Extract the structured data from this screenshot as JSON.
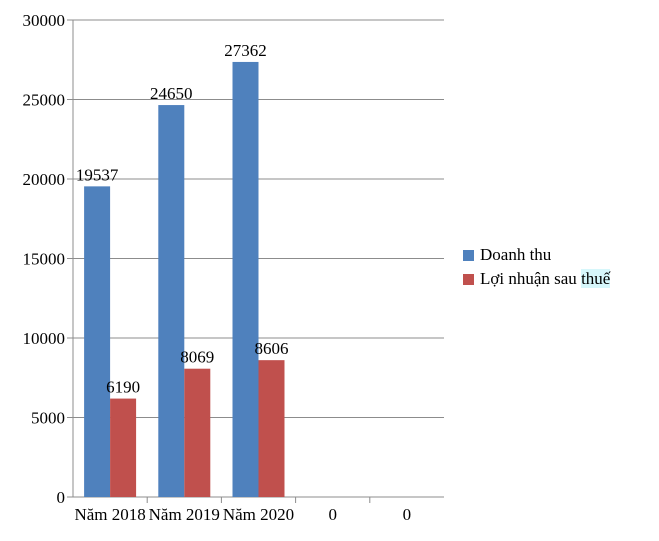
{
  "chart_data": {
    "type": "bar",
    "categories": [
      "Năm 2018",
      "Năm 2019",
      "Năm 2020",
      "0",
      "0"
    ],
    "series": [
      {
        "name": "Doanh thu",
        "values": [
          19537,
          24650,
          27362,
          null,
          null
        ],
        "color": "#4f81bd"
      },
      {
        "name": "Lợi nhuận sau thuế",
        "values": [
          6190,
          8069,
          8606,
          null,
          null
        ],
        "color": "#c0504d"
      }
    ],
    "data_labels": [
      [
        "19537",
        "24650",
        "27362"
      ],
      [
        "6190",
        "8069",
        "8606"
      ]
    ],
    "y_ticks": [
      "0",
      "5000",
      "10000",
      "15000",
      "20000",
      "25000",
      "30000"
    ],
    "ylim": [
      0,
      30000
    ],
    "grid": true,
    "legend_position": "right"
  },
  "legend": {
    "items": [
      {
        "label": "Doanh thu",
        "color": "#4f81bd"
      },
      {
        "label_main": "Lợi nhuận sau ",
        "label_highlight": "thuế",
        "color": "#c0504d"
      }
    ]
  }
}
